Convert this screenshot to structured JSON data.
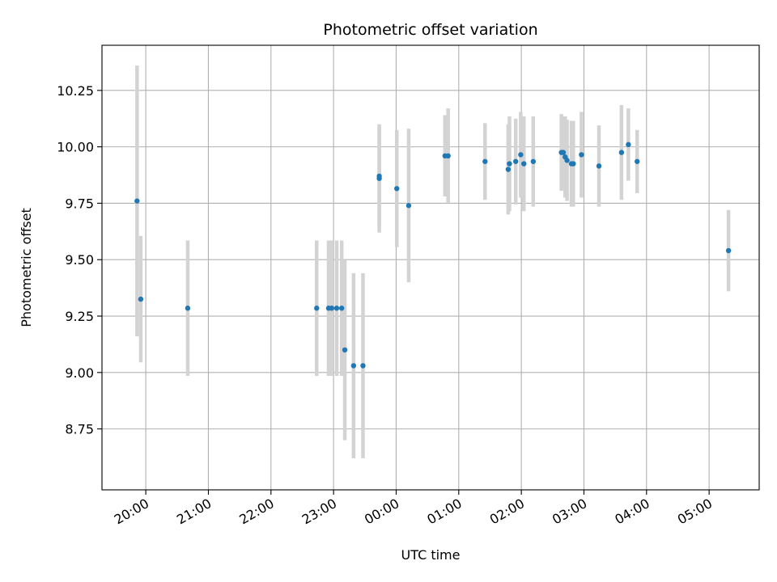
{
  "chart_data": {
    "type": "scatter",
    "title": "Photometric offset variation",
    "xlabel": "UTC time",
    "ylabel": "Photometric offset",
    "x_unit": "hours after 00:00 UTC (negative = previous evening)",
    "xlim": [
      -4.7,
      5.8
    ],
    "ylim": [
      8.48,
      10.45
    ],
    "x_ticks": [
      {
        "value": -4,
        "label": "20:00"
      },
      {
        "value": -3,
        "label": "21:00"
      },
      {
        "value": -2,
        "label": "22:00"
      },
      {
        "value": -1,
        "label": "23:00"
      },
      {
        "value": 0,
        "label": "00:00"
      },
      {
        "value": 1,
        "label": "01:00"
      },
      {
        "value": 2,
        "label": "02:00"
      },
      {
        "value": 3,
        "label": "03:00"
      },
      {
        "value": 4,
        "label": "04:00"
      },
      {
        "value": 5,
        "label": "05:00"
      }
    ],
    "y_ticks": [
      {
        "value": 8.75,
        "label": "8.75"
      },
      {
        "value": 9.0,
        "label": "9.00"
      },
      {
        "value": 9.25,
        "label": "9.25"
      },
      {
        "value": 9.5,
        "label": "9.50"
      },
      {
        "value": 9.75,
        "label": "9.75"
      },
      {
        "value": 10.0,
        "label": "10.00"
      },
      {
        "value": 10.25,
        "label": "10.25"
      }
    ],
    "grid": true,
    "point_color": "#1f77b4",
    "errorbar_color": "#d3d3d3",
    "points": [
      {
        "x": -4.14,
        "y": 9.76,
        "err": 0.6
      },
      {
        "x": -4.08,
        "y": 9.325,
        "err": 0.28
      },
      {
        "x": -3.33,
        "y": 9.285,
        "err": 0.3
      },
      {
        "x": -1.27,
        "y": 9.285,
        "err": 0.3
      },
      {
        "x": -1.08,
        "y": 9.285,
        "err": 0.3
      },
      {
        "x": -1.03,
        "y": 9.285,
        "err": 0.3
      },
      {
        "x": -0.95,
        "y": 9.285,
        "err": 0.3
      },
      {
        "x": -0.87,
        "y": 9.285,
        "err": 0.3
      },
      {
        "x": -0.82,
        "y": 9.1,
        "err": 0.4
      },
      {
        "x": -0.68,
        "y": 9.03,
        "err": 0.41
      },
      {
        "x": -0.53,
        "y": 9.03,
        "err": 0.41
      },
      {
        "x": -0.27,
        "y": 9.86,
        "err": 0.24
      },
      {
        "x": -0.27,
        "y": 9.87,
        "err": 0.22
      },
      {
        "x": 0.01,
        "y": 9.815,
        "err": 0.26
      },
      {
        "x": 0.2,
        "y": 9.74,
        "err": 0.34
      },
      {
        "x": 0.78,
        "y": 9.96,
        "err": 0.18
      },
      {
        "x": 0.83,
        "y": 9.96,
        "err": 0.21
      },
      {
        "x": 1.42,
        "y": 9.935,
        "err": 0.17
      },
      {
        "x": 1.79,
        "y": 9.9,
        "err": 0.2
      },
      {
        "x": 1.81,
        "y": 9.925,
        "err": 0.21
      },
      {
        "x": 1.91,
        "y": 9.935,
        "err": 0.19
      },
      {
        "x": 1.99,
        "y": 9.965,
        "err": 0.19
      },
      {
        "x": 2.04,
        "y": 9.925,
        "err": 0.21
      },
      {
        "x": 2.19,
        "y": 9.935,
        "err": 0.2
      },
      {
        "x": 2.64,
        "y": 9.975,
        "err": 0.17
      },
      {
        "x": 2.67,
        "y": 9.975,
        "err": 0.16
      },
      {
        "x": 2.7,
        "y": 9.955,
        "err": 0.18
      },
      {
        "x": 2.73,
        "y": 9.94,
        "err": 0.18
      },
      {
        "x": 2.8,
        "y": 9.925,
        "err": 0.19
      },
      {
        "x": 2.83,
        "y": 9.925,
        "err": 0.19
      },
      {
        "x": 2.96,
        "y": 9.965,
        "err": 0.19
      },
      {
        "x": 3.24,
        "y": 9.915,
        "err": 0.18
      },
      {
        "x": 3.6,
        "y": 9.975,
        "err": 0.21
      },
      {
        "x": 3.71,
        "y": 10.01,
        "err": 0.16
      },
      {
        "x": 3.85,
        "y": 9.935,
        "err": 0.14
      },
      {
        "x": 5.31,
        "y": 9.54,
        "err": 0.18
      }
    ]
  }
}
